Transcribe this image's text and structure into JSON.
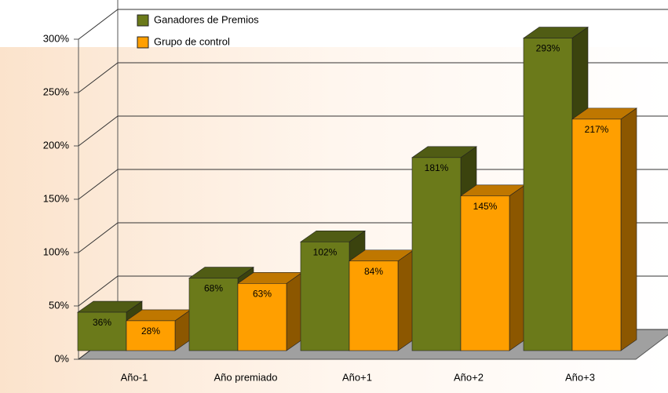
{
  "chart_data": {
    "type": "bar3d",
    "categories": [
      "Año-1",
      "Año premiado",
      "Año+1",
      "Año+2",
      "Año+3"
    ],
    "series": [
      {
        "name": "Ganadores de Premios",
        "color": "#6b7a1a",
        "values": [
          36,
          68,
          102,
          181,
          293
        ],
        "value_labels": [
          "36%",
          "68%",
          "102%",
          "181%",
          "293%"
        ]
      },
      {
        "name": "Grupo de control",
        "color": "#ff9f00",
        "values": [
          28,
          63,
          84,
          145,
          217
        ],
        "value_labels": [
          "28%",
          "63%",
          "84%",
          "145%",
          "217%"
        ]
      }
    ],
    "ylim": [
      0,
      300
    ],
    "yticks": [
      {
        "value": 0,
        "label": "0%"
      },
      {
        "value": 50,
        "label": "50%"
      },
      {
        "value": 100,
        "label": "100%"
      },
      {
        "value": 150,
        "label": "150%"
      },
      {
        "value": 200,
        "label": "200%"
      },
      {
        "value": 250,
        "label": "250%"
      },
      {
        "value": 300,
        "label": "300%"
      }
    ],
    "grid": true
  }
}
